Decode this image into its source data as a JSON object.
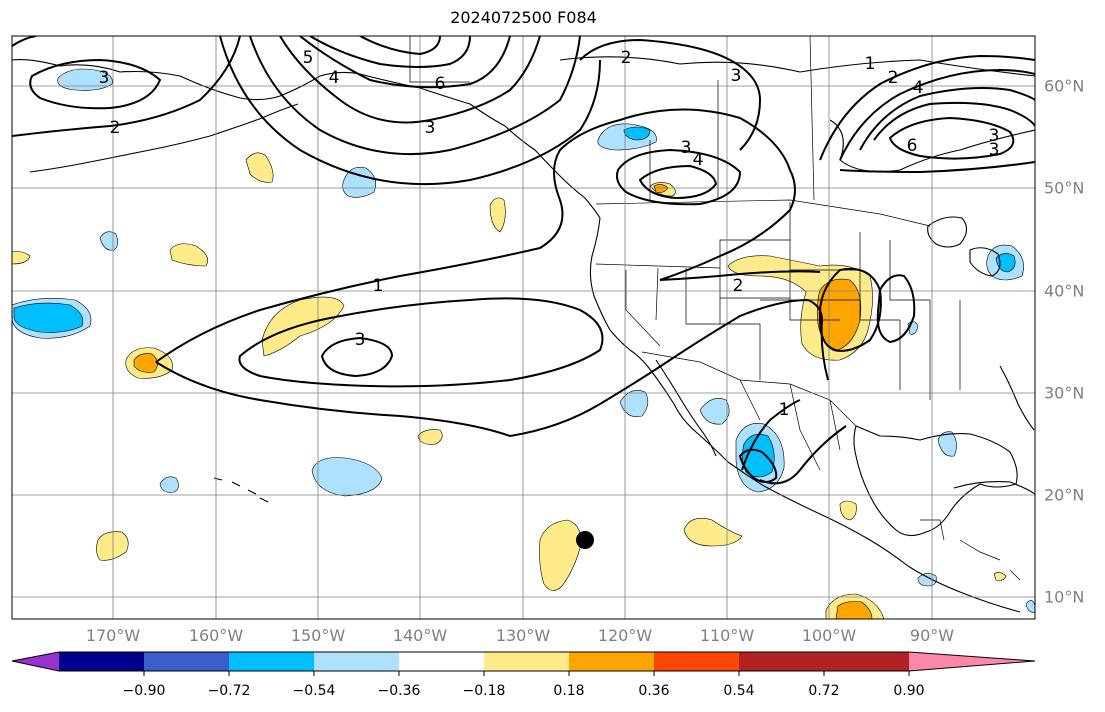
{
  "title": "2024072500 F084",
  "lon_labels": [
    "170°W",
    "160°W",
    "150°W",
    "140°W",
    "130°W",
    "120°W",
    "110°W",
    "100°W",
    "90°W"
  ],
  "lat_labels": [
    "60°N",
    "50°N",
    "40°N",
    "30°N",
    "20°N",
    "10°N"
  ],
  "contour_labels": [
    "3",
    "2",
    "5",
    "4",
    "6",
    "3",
    "2",
    "3",
    "4",
    "3",
    "1",
    "2",
    "4",
    "6",
    "3",
    "3",
    "1",
    "3",
    "2",
    "1"
  ],
  "colorbar": {
    "ticks": [
      "−0.90",
      "−0.72",
      "−0.54",
      "−0.36",
      "−0.18",
      "0.18",
      "0.36",
      "0.54",
      "0.72",
      "0.90"
    ],
    "colors": [
      "#9932cc",
      "#00008b",
      "#3a5fcd",
      "#00bfff",
      "#aee1ff",
      "#ffffff",
      "#ffeb8a",
      "#ffa500",
      "#ff4500",
      "#b22222",
      "#ff88aa"
    ]
  },
  "marker": "storm position"
}
